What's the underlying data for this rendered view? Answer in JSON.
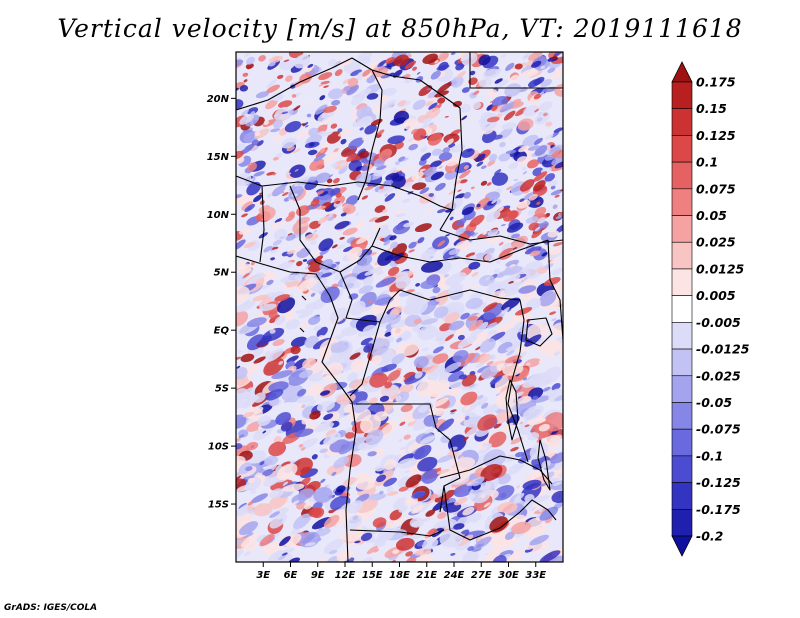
{
  "title": "Vertical velocity [m/s] at 850hPa, VT: 2019111618",
  "credit": "GrADS: IGES/COLA",
  "map": {
    "variable": "Vertical velocity",
    "units": "m/s",
    "level": "850hPa",
    "valid_time": "2019111618",
    "lon_range": [
      0,
      36
    ],
    "lat_range": [
      -20,
      24
    ],
    "lat_ticks": [
      {
        "value": 20,
        "label": "20N"
      },
      {
        "value": 15,
        "label": "15N"
      },
      {
        "value": 10,
        "label": "10N"
      },
      {
        "value": 5,
        "label": "5N"
      },
      {
        "value": 0,
        "label": "EQ"
      },
      {
        "value": -5,
        "label": "5S"
      },
      {
        "value": -10,
        "label": "10S"
      },
      {
        "value": -15,
        "label": "15S"
      }
    ],
    "lon_ticks": [
      {
        "value": 3,
        "label": "3E"
      },
      {
        "value": 6,
        "label": "6E"
      },
      {
        "value": 9,
        "label": "9E"
      },
      {
        "value": 12,
        "label": "12E"
      },
      {
        "value": 15,
        "label": "15E"
      },
      {
        "value": 18,
        "label": "18E"
      },
      {
        "value": 21,
        "label": "21E"
      },
      {
        "value": 24,
        "label": "24E"
      },
      {
        "value": 27,
        "label": "27E"
      },
      {
        "value": 30,
        "label": "30E"
      },
      {
        "value": 33,
        "label": "33E"
      }
    ]
  },
  "colorbar": {
    "labels": [
      "0.175",
      "0.15",
      "0.125",
      "0.1",
      "0.075",
      "0.05",
      "0.025",
      "0.0125",
      "0.005",
      "-0.005",
      "-0.0125",
      "-0.025",
      "-0.05",
      "-0.075",
      "-0.1",
      "-0.125",
      "-0.175",
      "-0.2"
    ],
    "colors": [
      "#a01212",
      "#b82020",
      "#cc3232",
      "#dc4848",
      "#e66262",
      "#ee8080",
      "#f4a2a2",
      "#f8c4c4",
      "#fce4e4",
      "#ffffff",
      "#dcdcf8",
      "#c2c2f4",
      "#a4a4ee",
      "#8686e6",
      "#6a6ade",
      "#4c4cd2",
      "#3434c2",
      "#2020b0",
      "#1010a0"
    ]
  }
}
